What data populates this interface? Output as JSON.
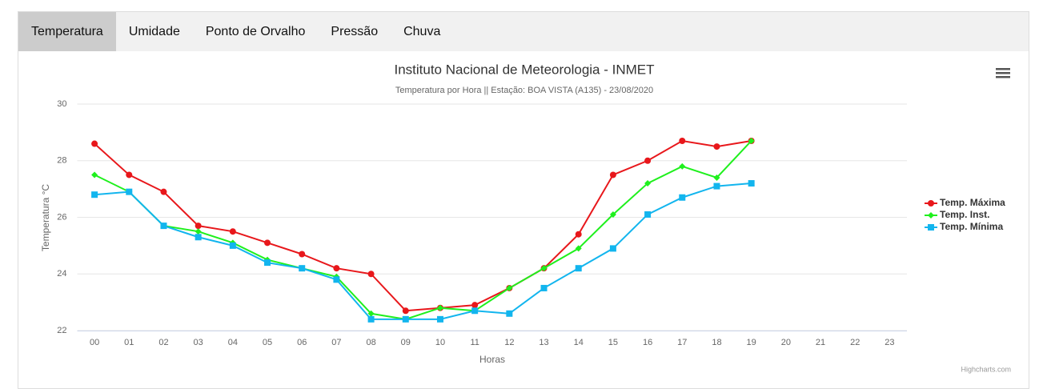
{
  "tabs": [
    "Temperatura",
    "Umidade",
    "Ponto de Orvalho",
    "Pressão",
    "Chuva"
  ],
  "active_tab": 0,
  "chart_data": {
    "type": "line",
    "title": "Instituto Nacional de Meteorologia - INMET",
    "subtitle": "Temperatura por Hora || Estação: BOA VISTA (A135) - 23/08/2020",
    "x_label": "Horas",
    "y_label": "Temperatura °C",
    "credit": "Highcharts.com",
    "categories": [
      "00",
      "01",
      "02",
      "03",
      "04",
      "05",
      "06",
      "07",
      "08",
      "09",
      "10",
      "11",
      "12",
      "13",
      "14",
      "15",
      "16",
      "17",
      "18",
      "19",
      "20",
      "21",
      "22",
      "23"
    ],
    "ylim": [
      22,
      30
    ],
    "yticks": [
      22,
      24,
      26,
      28,
      30
    ],
    "grid": true,
    "legend": "right",
    "series": [
      {
        "name": "Temp. Máxima",
        "color": "#e8171b",
        "marker": "circle",
        "values": [
          28.6,
          27.5,
          26.9,
          25.7,
          25.5,
          25.1,
          24.7,
          24.2,
          24.0,
          22.7,
          22.8,
          22.9,
          23.5,
          24.2,
          25.4,
          27.5,
          28.0,
          28.7,
          28.5,
          28.7,
          null,
          null,
          null,
          null
        ]
      },
      {
        "name": "Temp. Inst.",
        "color": "#1ff01d",
        "marker": "diamond",
        "values": [
          27.5,
          26.9,
          25.7,
          25.5,
          25.1,
          24.5,
          24.2,
          23.9,
          22.6,
          22.4,
          22.8,
          22.7,
          23.5,
          24.2,
          24.9,
          26.1,
          27.2,
          27.8,
          27.4,
          28.7,
          null,
          null,
          null,
          null
        ]
      },
      {
        "name": "Temp. Mínima",
        "color": "#12b5ee",
        "marker": "square",
        "values": [
          26.8,
          26.9,
          25.7,
          25.3,
          25.0,
          24.4,
          24.2,
          23.8,
          22.4,
          22.4,
          22.4,
          22.7,
          22.6,
          23.5,
          24.2,
          24.9,
          26.1,
          26.7,
          27.1,
          27.2,
          null,
          null,
          null,
          null
        ]
      }
    ]
  }
}
